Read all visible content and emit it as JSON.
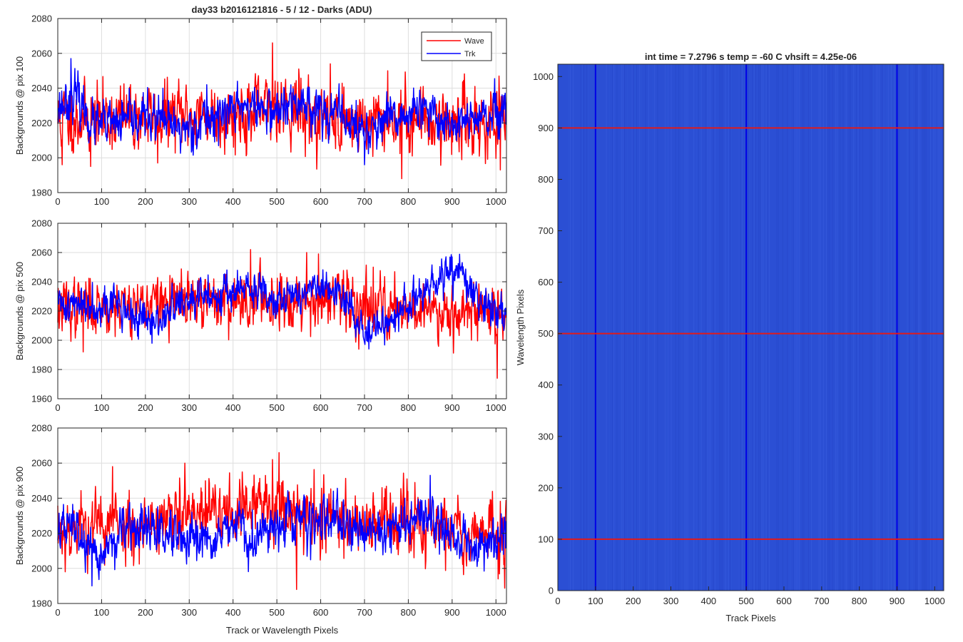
{
  "figure": {
    "title": "day33 b2016121816 - 5 / 12 - Darks (ADU)",
    "colors": {
      "wave": "#ff0000",
      "trk": "#0000ff",
      "grid": "#dedede",
      "axis": "#262626",
      "image_base": "#2b4fd4",
      "image_line_blue": "#0000e6",
      "image_line_red": "#e21a1a"
    }
  },
  "chart_data": [
    {
      "type": "line",
      "title": "day33 b2016121816 - 5 / 12 - Darks (ADU)",
      "xlabel": "",
      "ylabel": "Backgrounds @ pix 100",
      "xlim": [
        0,
        1024
      ],
      "ylim": [
        1980,
        2080
      ],
      "xticks": [
        0,
        100,
        200,
        300,
        400,
        500,
        600,
        700,
        800,
        900,
        1000
      ],
      "yticks": [
        1980,
        2000,
        2020,
        2040,
        2060,
        2080
      ],
      "grid": true,
      "legend": "top-right",
      "series": [
        {
          "name": "Wave",
          "color": "#ff0000",
          "mean": 2022,
          "noise": 9,
          "seed": 11,
          "drift": [
            [
              0,
              0
            ],
            [
              150,
              1
            ],
            [
              300,
              2
            ],
            [
              480,
              5
            ],
            [
              500,
              12
            ],
            [
              560,
              3
            ],
            [
              700,
              -2
            ],
            [
              800,
              0
            ],
            [
              1024,
              -3
            ]
          ],
          "peaks": [
            [
              10,
              1996
            ],
            [
              30,
              2042
            ],
            [
              75,
              1995
            ],
            [
              228,
              1997
            ],
            [
              490,
              2066
            ],
            [
              550,
              2051
            ],
            [
              622,
              2054
            ],
            [
              753,
              2050
            ],
            [
              785,
              1988
            ],
            [
              952,
              2041
            ],
            [
              1010,
              1993
            ]
          ]
        },
        {
          "name": "Trk",
          "color": "#0000ff",
          "mean": 2024,
          "noise": 6,
          "seed": 23,
          "drift": [
            [
              0,
              5
            ],
            [
              40,
              12
            ],
            [
              80,
              -5
            ],
            [
              130,
              -5
            ],
            [
              200,
              0
            ],
            [
              280,
              -8
            ],
            [
              340,
              -2
            ],
            [
              420,
              6
            ],
            [
              500,
              3
            ],
            [
              560,
              8
            ],
            [
              660,
              -2
            ],
            [
              700,
              -10
            ],
            [
              740,
              -5
            ],
            [
              820,
              3
            ],
            [
              900,
              -4
            ],
            [
              1024,
              0
            ]
          ],
          "peaks": [
            [
              30,
              2057
            ],
            [
              240,
              2040
            ],
            [
              340,
              2042
            ],
            [
              410,
              2044
            ],
            [
              700,
              1996
            ]
          ]
        }
      ]
    },
    {
      "type": "line",
      "xlabel": "",
      "ylabel": "Backgrounds @ pix 500",
      "xlim": [
        0,
        1024
      ],
      "ylim": [
        1960,
        2080
      ],
      "xticks": [
        0,
        100,
        200,
        300,
        400,
        500,
        600,
        700,
        800,
        900,
        1000
      ],
      "yticks": [
        1960,
        1980,
        2000,
        2020,
        2040,
        2060,
        2080
      ],
      "grid": true,
      "series": [
        {
          "name": "Wave",
          "color": "#ff0000",
          "mean": 2022,
          "noise": 9,
          "seed": 37,
          "drift": [
            [
              0,
              0
            ],
            [
              200,
              3
            ],
            [
              440,
              6
            ],
            [
              560,
              7
            ],
            [
              640,
              4
            ],
            [
              800,
              0
            ],
            [
              1024,
              -2
            ]
          ],
          "peaks": [
            [
              58,
              1992
            ],
            [
              440,
              2062
            ],
            [
              568,
              2060
            ],
            [
              595,
              2059
            ],
            [
              660,
              2048
            ],
            [
              720,
              2050
            ],
            [
              1003,
              1974
            ]
          ]
        },
        {
          "name": "Trk",
          "color": "#0000ff",
          "mean": 2024,
          "noise": 6,
          "seed": 41,
          "drift": [
            [
              0,
              0
            ],
            [
              130,
              2
            ],
            [
              170,
              -8
            ],
            [
              220,
              -14
            ],
            [
              260,
              -2
            ],
            [
              380,
              10
            ],
            [
              460,
              9
            ],
            [
              520,
              5
            ],
            [
              600,
              12
            ],
            [
              660,
              2
            ],
            [
              700,
              -18
            ],
            [
              740,
              -14
            ],
            [
              800,
              0
            ],
            [
              880,
              18
            ],
            [
              910,
              25
            ],
            [
              960,
              2
            ],
            [
              1024,
              -6
            ]
          ],
          "peaks": [
            [
              900,
              2057
            ],
            [
              710,
              1994
            ]
          ]
        }
      ]
    },
    {
      "type": "line",
      "xlabel": "Track or Wavelength Pixels",
      "ylabel": "Backgrounds @ pix 900",
      "xlim": [
        0,
        1024
      ],
      "ylim": [
        1980,
        2080
      ],
      "xticks": [
        0,
        100,
        200,
        300,
        400,
        500,
        600,
        700,
        800,
        900,
        1000
      ],
      "yticks": [
        1980,
        2000,
        2020,
        2040,
        2060,
        2080
      ],
      "grid": true,
      "series": [
        {
          "name": "Wave",
          "color": "#ff0000",
          "mean": 2023,
          "noise": 9,
          "seed": 53,
          "drift": [
            [
              0,
              0
            ],
            [
              250,
              4
            ],
            [
              460,
              12
            ],
            [
              520,
              14
            ],
            [
              600,
              6
            ],
            [
              800,
              2
            ],
            [
              1024,
              -4
            ]
          ],
          "peaks": [
            [
              125,
              2058
            ],
            [
              290,
              2060
            ],
            [
              490,
              2062
            ],
            [
              505,
              2066
            ],
            [
              545,
              1988
            ],
            [
              740,
              2046
            ],
            [
              1005,
              1994
            ]
          ]
        },
        {
          "name": "Trk",
          "color": "#0000ff",
          "mean": 2022,
          "noise": 6,
          "seed": 67,
          "drift": [
            [
              0,
              0
            ],
            [
              40,
              2
            ],
            [
              80,
              -18
            ],
            [
              100,
              -14
            ],
            [
              140,
              -3
            ],
            [
              200,
              2
            ],
            [
              300,
              -10
            ],
            [
              340,
              -6
            ],
            [
              420,
              2
            ],
            [
              440,
              -10
            ],
            [
              500,
              5
            ],
            [
              560,
              6
            ],
            [
              660,
              2
            ],
            [
              740,
              0
            ],
            [
              850,
              8
            ],
            [
              900,
              -4
            ],
            [
              960,
              -10
            ],
            [
              1024,
              -2
            ]
          ],
          "peaks": [
            [
              78,
              1990
            ],
            [
              850,
              2053
            ]
          ]
        }
      ]
    },
    {
      "type": "heatmap",
      "title": "int time = 7.2796 s    temp = -60 C    vhsift = 4.25e-06",
      "xlabel": "Track Pixels",
      "ylabel": "Wavelength Pixels",
      "xlim": [
        0,
        1024
      ],
      "ylim": [
        0,
        1024
      ],
      "xticks": [
        0,
        100,
        200,
        300,
        400,
        500,
        600,
        700,
        800,
        900,
        1000
      ],
      "yticks": [
        0,
        100,
        200,
        300,
        400,
        500,
        600,
        700,
        800,
        900,
        1000
      ],
      "vertical_lines": [
        100,
        500,
        900
      ],
      "horizontal_lines": [
        100,
        500,
        900
      ]
    }
  ]
}
